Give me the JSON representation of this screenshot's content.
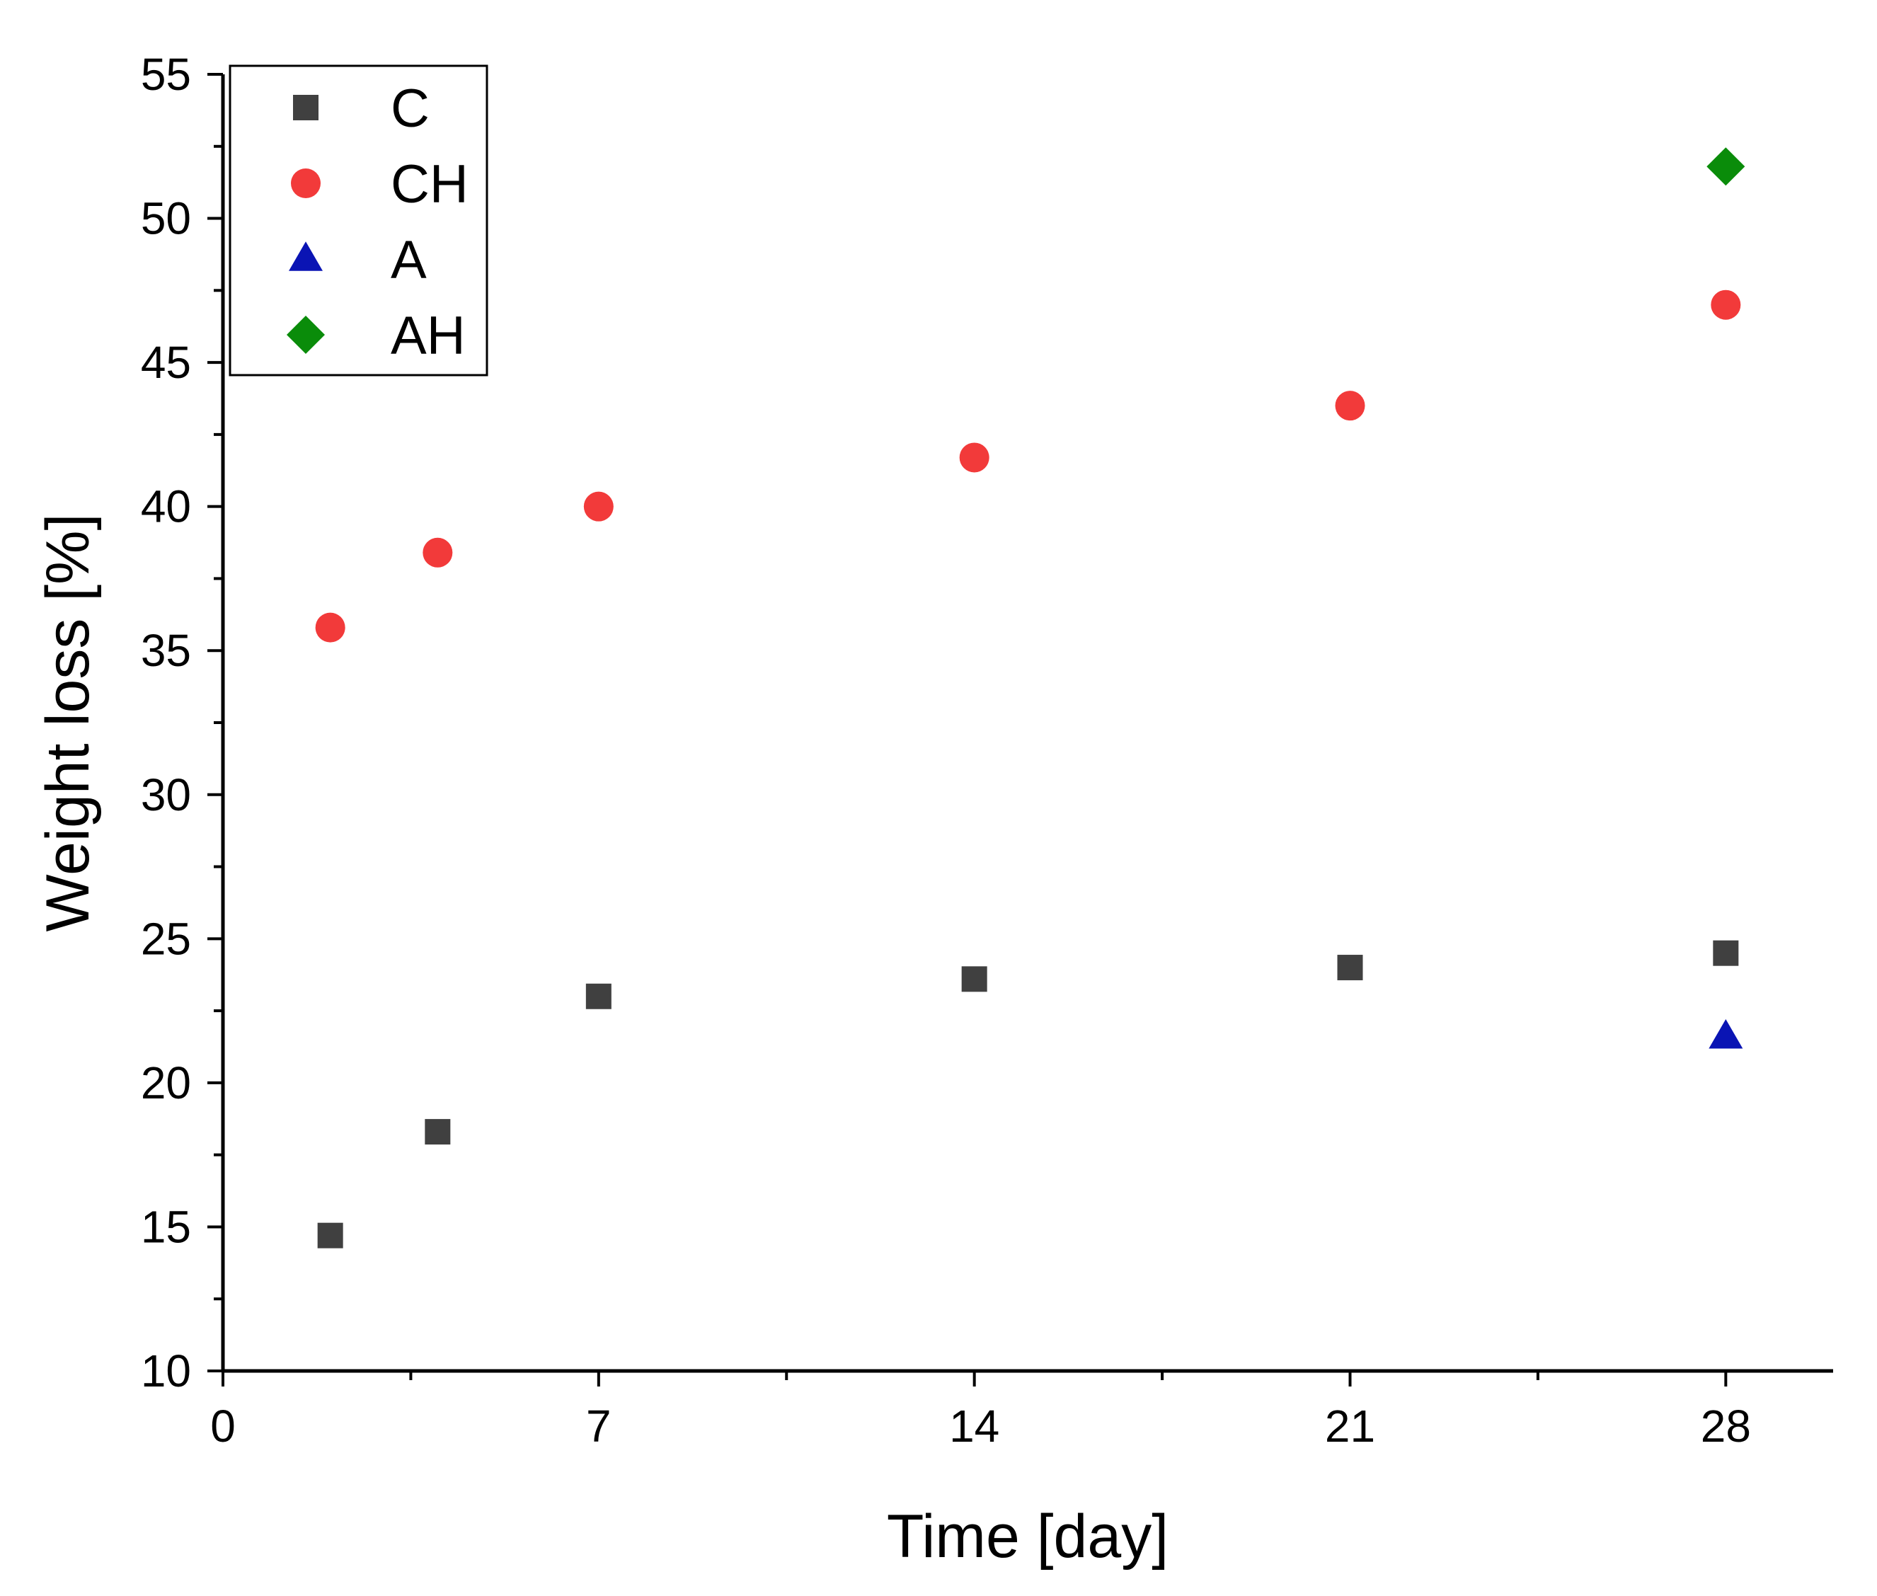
{
  "chart_data": {
    "type": "scatter",
    "title": "",
    "xlabel": "Time [day]",
    "ylabel": "Weight loss [%]",
    "xlim": [
      0,
      30
    ],
    "ylim": [
      10,
      55
    ],
    "xticks": [
      0,
      7,
      14,
      21,
      28
    ],
    "xtick_labels": [
      "0",
      "7",
      "14",
      "21",
      "28"
    ],
    "xminor": [
      3.5,
      10.5,
      17.5,
      24.5
    ],
    "yticks": [
      10,
      15,
      20,
      25,
      30,
      35,
      40,
      45,
      50,
      55
    ],
    "ytick_labels": [
      "10",
      "15",
      "20",
      "25",
      "30",
      "35",
      "40",
      "45",
      "50",
      "55"
    ],
    "yminor": [
      12.5,
      17.5,
      22.5,
      27.5,
      32.5,
      37.5,
      42.5,
      47.5,
      52.5
    ],
    "grid": false,
    "legend_position": "top-left",
    "series": [
      {
        "name": "C",
        "marker": "square",
        "color": "#404040",
        "points": [
          [
            2,
            14.7
          ],
          [
            4,
            18.3
          ],
          [
            7,
            23.0
          ],
          [
            14,
            23.6
          ],
          [
            21,
            24.0
          ],
          [
            28,
            24.5
          ]
        ]
      },
      {
        "name": "CH",
        "marker": "circle",
        "color": "#f23a3a",
        "points": [
          [
            2,
            35.8
          ],
          [
            4,
            38.4
          ],
          [
            7,
            40.0
          ],
          [
            14,
            41.7
          ],
          [
            21,
            43.5
          ],
          [
            28,
            47.0
          ]
        ]
      },
      {
        "name": "A",
        "marker": "triangle",
        "color": "#0a14b4",
        "points": [
          [
            28,
            21.6
          ]
        ]
      },
      {
        "name": "AH",
        "marker": "diamond",
        "color": "#0a8c0a",
        "points": [
          [
            28,
            51.8
          ]
        ]
      }
    ]
  }
}
